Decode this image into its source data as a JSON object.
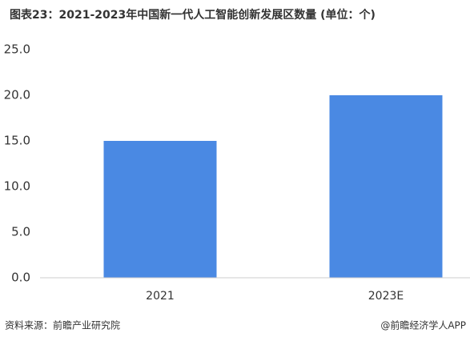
{
  "chart_data": {
    "type": "bar",
    "title": "图表23：2021-2023年中国新一代人工智能创新发展区数量 (单位：个)",
    "categories": [
      "2021",
      "2023E"
    ],
    "values": [
      15,
      20
    ],
    "color": "#4a89e3",
    "ylim": [
      0,
      25
    ],
    "yticks": [
      {
        "value": 0,
        "label": "0.0"
      },
      {
        "value": 5,
        "label": "5.0"
      },
      {
        "value": 10,
        "label": "10.0"
      },
      {
        "value": 15,
        "label": "15.0"
      },
      {
        "value": 20,
        "label": "20.0"
      },
      {
        "value": 25,
        "label": "25.0"
      }
    ],
    "grid": false,
    "source": "资料来源：前瞻产业研究院",
    "credit": "@前瞻经济学人APP"
  }
}
